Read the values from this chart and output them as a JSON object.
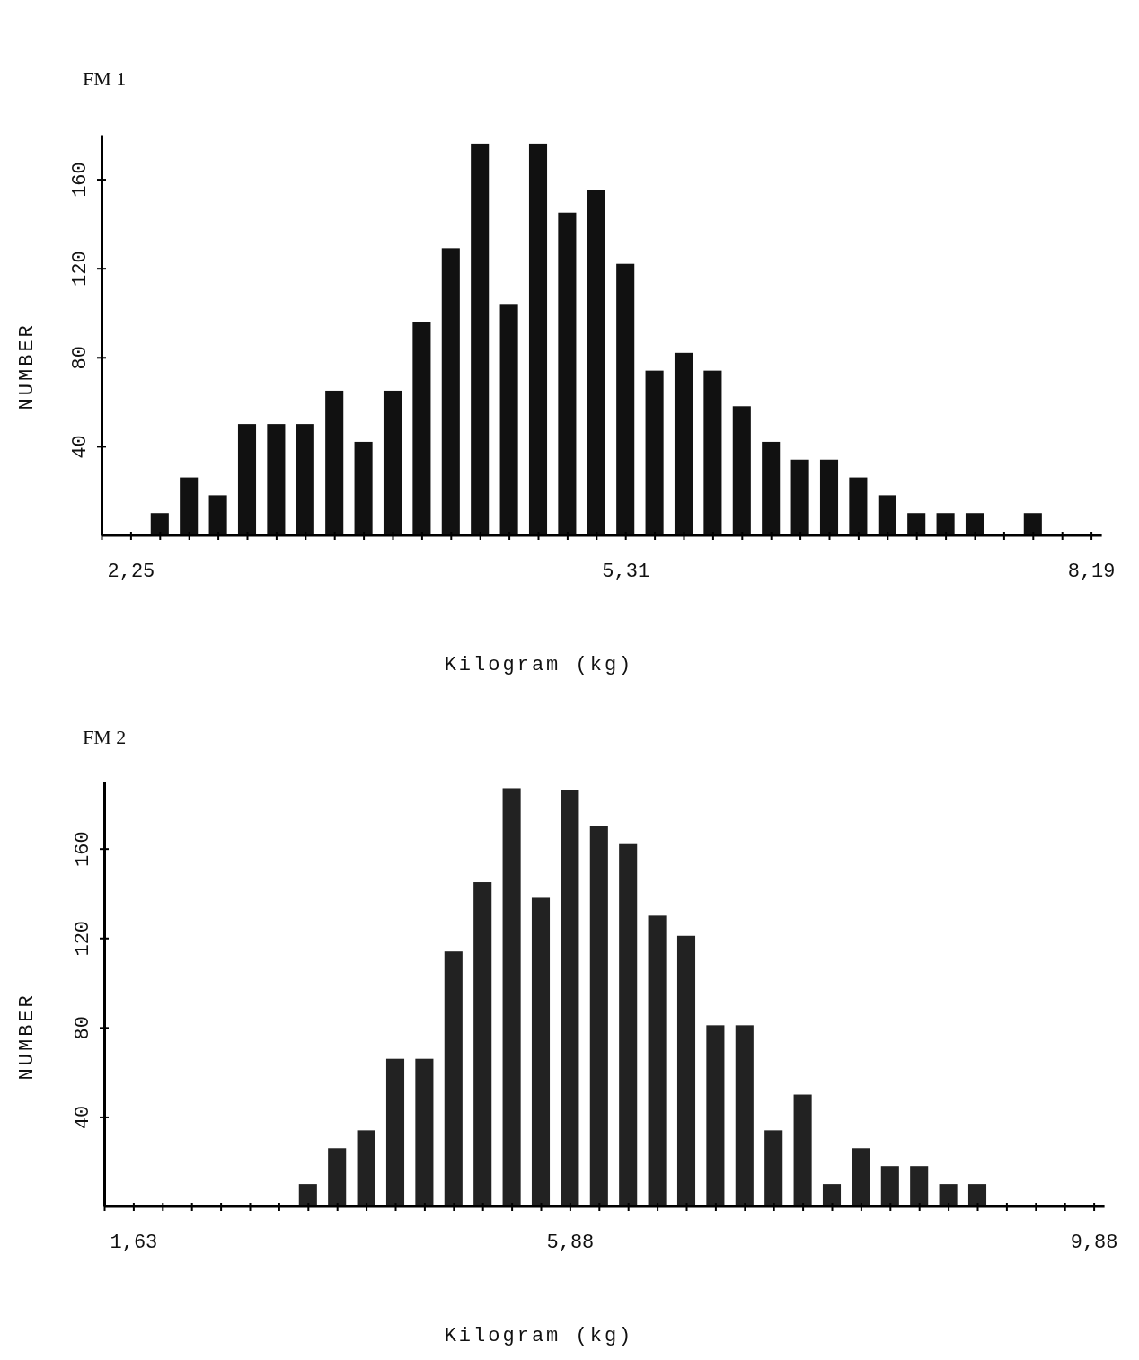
{
  "chart_data": [
    {
      "type": "bar",
      "title": "FM 1",
      "xlabel": "Kilogram (kg)",
      "ylabel": "NUMBER",
      "color": "#111111",
      "categories": [
        null,
        "2,25",
        null,
        null,
        null,
        null,
        null,
        null,
        null,
        null,
        null,
        null,
        null,
        null,
        null,
        null,
        null,
        null,
        "5,31",
        null,
        null,
        null,
        null,
        null,
        null,
        null,
        null,
        null,
        null,
        null,
        null,
        null,
        null,
        null,
        "8,19"
      ],
      "values": [
        null,
        null,
        10,
        26,
        18,
        50,
        50,
        50,
        65,
        42,
        65,
        96,
        129,
        176,
        104,
        176,
        145,
        155,
        122,
        74,
        82,
        74,
        58,
        42,
        34,
        34,
        26,
        18,
        10,
        10,
        10,
        null,
        10,
        null,
        null
      ],
      "ylim": [
        0,
        180
      ],
      "yticks": [
        40,
        80,
        120,
        160
      ]
    },
    {
      "type": "bar",
      "title": "FM 2",
      "xlabel": "Kilogram (kg)",
      "ylabel": "NUMBER",
      "color": "#222222",
      "categories": [
        null,
        "1,63",
        null,
        null,
        null,
        null,
        null,
        null,
        null,
        null,
        null,
        null,
        null,
        null,
        null,
        null,
        "5,88",
        null,
        null,
        null,
        null,
        null,
        null,
        null,
        null,
        null,
        null,
        null,
        null,
        null,
        null,
        null,
        null,
        null,
        "9,88"
      ],
      "values": [
        null,
        null,
        null,
        null,
        null,
        null,
        null,
        10,
        26,
        34,
        66,
        66,
        114,
        145,
        187,
        138,
        186,
        170,
        162,
        130,
        121,
        81,
        81,
        34,
        50,
        10,
        26,
        18,
        18,
        10,
        10,
        null,
        null,
        null,
        null
      ],
      "ylim": [
        0,
        190
      ],
      "yticks": [
        40,
        80,
        120,
        160
      ]
    }
  ]
}
